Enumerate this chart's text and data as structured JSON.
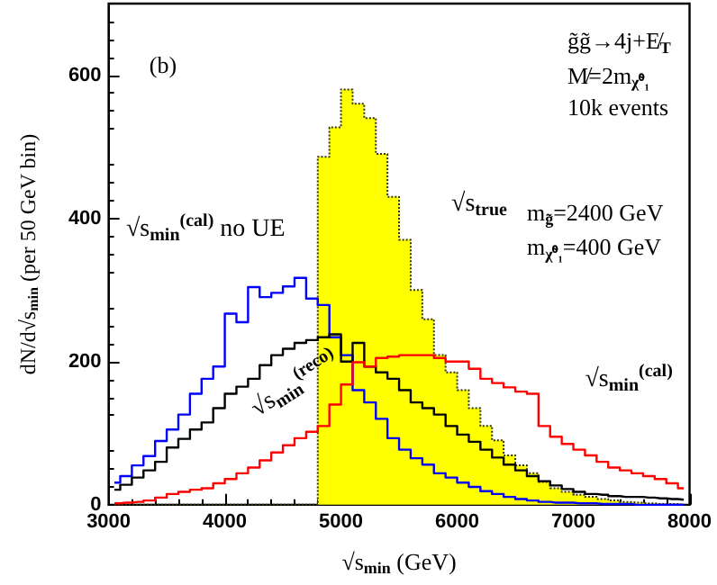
{
  "chart_data": {
    "type": "step",
    "xlabel": "√s$_{min}$ (GeV)",
    "ylabel": "dN/d√s$_{min}$ (per 50 GeV bin)",
    "x": [
      3050,
      3150,
      3250,
      3350,
      3450,
      3550,
      3650,
      3750,
      3850,
      3950,
      4050,
      4150,
      4250,
      4350,
      4450,
      4550,
      4650,
      4750,
      4850,
      4950,
      5050,
      5150,
      5250,
      5350,
      5450,
      5550,
      5650,
      5750,
      5850,
      5950,
      6050,
      6150,
      6250,
      6350,
      6450,
      6550,
      6650,
      6750,
      6850,
      6950,
      7050,
      7150,
      7250,
      7350,
      7450,
      7550,
      7650,
      7750,
      7850,
      7950
    ],
    "series": [
      {
        "name": "√s$_{true}$",
        "type": "area",
        "color": "#ffff00",
        "line_style": "dotted",
        "values": [
          0,
          0,
          0,
          0,
          0,
          0,
          0,
          0,
          0,
          0,
          0,
          0,
          0,
          0,
          0,
          0,
          0,
          0,
          486,
          527,
          580,
          560,
          540,
          490,
          430,
          370,
          300,
          259,
          209,
          185,
          160,
          135,
          110,
          90,
          69,
          55,
          44,
          32,
          23,
          18,
          14,
          11,
          8,
          6,
          4,
          3,
          2,
          1,
          1,
          0
        ]
      },
      {
        "name": "√s$_{min}$$^{(cal)}$ no UE",
        "color": "#0000ff",
        "values": [
          31,
          40,
          55,
          68,
          89,
          105,
          126,
          155,
          176,
          193,
          267,
          255,
          304,
          290,
          296,
          305,
          317,
          288,
          279,
          234,
          209,
          160,
          143,
          120,
          93,
          77,
          65,
          56,
          44,
          38,
          31,
          25,
          19,
          15,
          11,
          8,
          6,
          4,
          3,
          3,
          2,
          2,
          1,
          1,
          1,
          0,
          0,
          0,
          0,
          0
        ]
      },
      {
        "name": "√s$_{min}$$^{(reco)}$",
        "color": "#000000",
        "values": [
          21,
          28,
          38,
          48,
          60,
          80,
          92,
          105,
          115,
          135,
          155,
          165,
          176,
          195,
          209,
          218,
          226,
          230,
          234,
          238,
          200,
          226,
          193,
          185,
          176,
          160,
          143,
          135,
          126,
          110,
          98,
          88,
          77,
          66,
          56,
          48,
          40,
          33,
          27,
          22,
          18,
          15,
          14,
          12,
          11,
          11,
          10,
          9,
          8,
          7
        ]
      },
      {
        "name": "√s$_{min}$$^{(cal)}$",
        "color": "#ff0000",
        "values": [
          2,
          3,
          4,
          6,
          10,
          15,
          18,
          21,
          23,
          30,
          36,
          44,
          52,
          62,
          73,
          83,
          93,
          102,
          110,
          140,
          168,
          199,
          193,
          205,
          207,
          209,
          209,
          209,
          205,
          200,
          200,
          190,
          176,
          170,
          164,
          158,
          155,
          110,
          95,
          85,
          77,
          69,
          60,
          52,
          48,
          44,
          40,
          36,
          30,
          23
        ]
      }
    ],
    "annotations": [
      "(b)",
      "g̃g̃→4j+E̸$_{T}$",
      "M̸=2m$_{χ̃⁰₁}$",
      "10k events",
      "m$_{g̃}$=2400 GeV",
      "m$_{χ̃⁰₁}$=400 GeV"
    ],
    "xlim": [
      3000,
      8000
    ],
    "xticks": [
      3000,
      4000,
      5000,
      6000,
      7000,
      8000
    ],
    "ylim": [
      0,
      700
    ],
    "yticks": [
      0,
      200,
      400,
      600
    ]
  }
}
